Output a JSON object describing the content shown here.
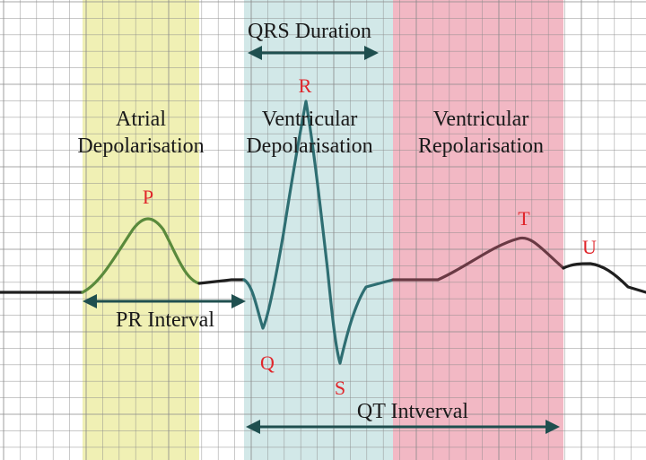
{
  "diagram": {
    "regions": [
      {
        "id": "atrial",
        "line1": "Atrial",
        "line2": "Depolarisation",
        "color": "#f0f0b4"
      },
      {
        "id": "ventricular-depol",
        "line1": "Ventricular",
        "line2": "Depolarisation",
        "color": "#d2e8e8"
      },
      {
        "id": "ventricular-repol",
        "line1": "Ventricular",
        "line2": "Repolarisation",
        "color": "#f2b8c4"
      }
    ],
    "waves": {
      "p": "P",
      "q": "Q",
      "r": "R",
      "s": "S",
      "t": "T",
      "u": "U"
    },
    "intervals": {
      "qrs": "QRS Duration",
      "pr": "PR Interval",
      "qt": "QT Intverval"
    },
    "colors": {
      "grid": "#8a8a8a",
      "trace_baseline": "#1f1f1f",
      "trace_p": "#5a8a3c",
      "trace_qrs": "#2e6e72",
      "trace_t": "#6a3a44",
      "arrow": "#1f4f4f",
      "wave_label": "#e0262b"
    }
  }
}
